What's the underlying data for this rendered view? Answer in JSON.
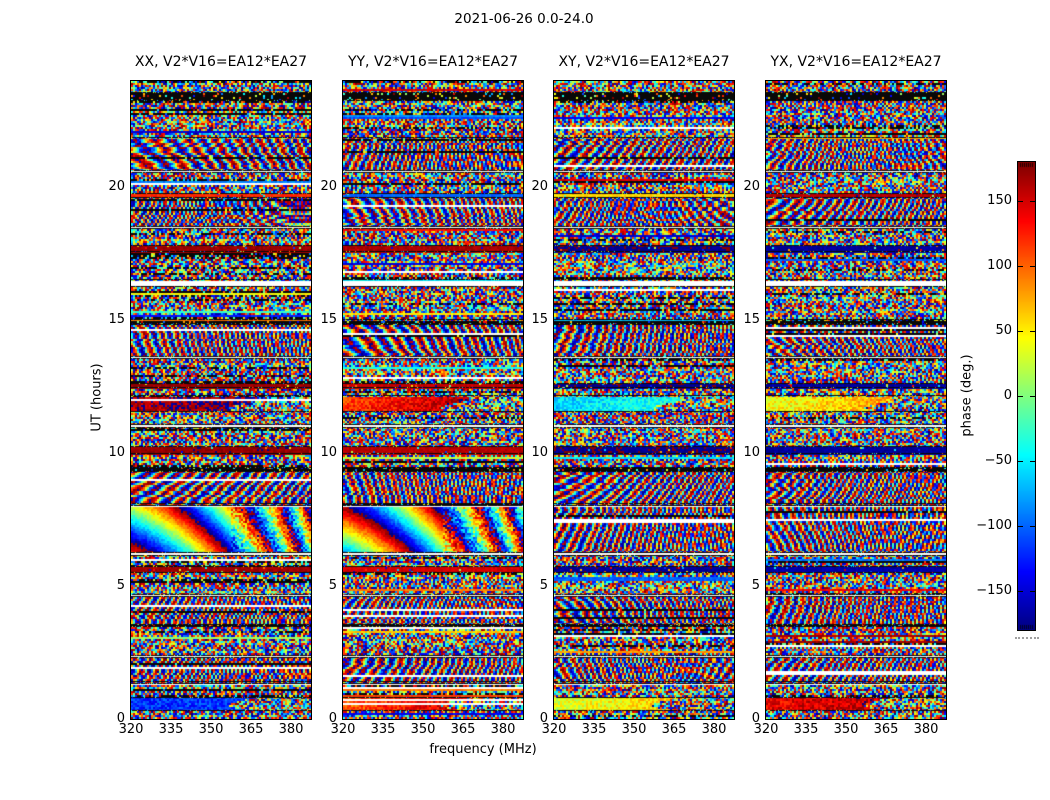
{
  "chart_data": {
    "type": "heatmap",
    "suptitle": "2021-06-26 0.0-24.0",
    "xlabel": "frequency (MHz)",
    "ylabel": "UT (hours)",
    "x_ticks": [
      320,
      335,
      350,
      365,
      380
    ],
    "x_tick_labels": [
      "320",
      "335",
      "350",
      "365",
      "380"
    ],
    "x_range": [
      320,
      387.5
    ],
    "y_ticks": [
      0,
      5,
      10,
      15,
      20
    ],
    "y_tick_labels": [
      "0",
      "5",
      "10",
      "15",
      "20"
    ],
    "y_range": [
      0,
      24
    ],
    "value_name": "phase (deg.)",
    "value_range": [
      -180,
      180
    ],
    "colorbar": {
      "label": "phase (deg.)",
      "ticks": [
        150,
        100,
        50,
        0,
        -50,
        -100,
        -150
      ],
      "tick_labels": [
        "150",
        "100",
        "50",
        "0",
        "−50",
        "−100",
        "−150"
      ],
      "range": [
        -180,
        180
      ],
      "colormap": "jet"
    },
    "colormap_stops": [
      [
        0.0,
        [
          0,
          0,
          127
        ]
      ],
      [
        0.125,
        [
          0,
          0,
          255
        ]
      ],
      [
        0.375,
        [
          0,
          255,
          255
        ]
      ],
      [
        0.625,
        [
          255,
          255,
          0
        ]
      ],
      [
        0.875,
        [
          255,
          0,
          0
        ]
      ],
      [
        1.0,
        [
          127,
          0,
          0
        ]
      ]
    ],
    "panels": [
      {
        "label": "XX, V2*V16=EA12*EA27",
        "pol": "XX",
        "seed": 101
      },
      {
        "label": "YY, V2*V16=EA12*EA27",
        "pol": "YY",
        "seed": 202
      },
      {
        "label": "XY, V2*V16=EA12*EA27",
        "pol": "XY",
        "seed": 303
      },
      {
        "label": "YX, V2*V16=EA12*EA27",
        "pol": "YX",
        "seed": 404
      }
    ],
    "time_segments": [
      {
        "t0": 0.0,
        "t1": 0.3,
        "kind": "noise"
      },
      {
        "t0": 0.3,
        "t1": 0.8,
        "kind": "band",
        "base": [
          -120,
          100,
          30,
          140
        ],
        "grad": [
          10,
          80,
          50,
          30
        ]
      },
      {
        "t0": 0.8,
        "t1": 1.3,
        "kind": "noise"
      },
      {
        "t0": 1.3,
        "t1": 1.38,
        "kind": "white"
      },
      {
        "t0": 1.38,
        "t1": 2.3,
        "kind": "wave"
      },
      {
        "t0": 2.3,
        "t1": 2.38,
        "kind": "white"
      },
      {
        "t0": 2.38,
        "t1": 3.45,
        "kind": "noise"
      },
      {
        "t0": 3.45,
        "t1": 3.55,
        "kind": "black"
      },
      {
        "t0": 3.55,
        "t1": 4.6,
        "kind": "wave"
      },
      {
        "t0": 4.6,
        "t1": 4.68,
        "kind": "white"
      },
      {
        "t0": 4.68,
        "t1": 5.5,
        "kind": "noise"
      },
      {
        "t0": 5.5,
        "t1": 5.72,
        "kind": "solid",
        "base": [
          168,
          150,
          -172,
          -166
        ]
      },
      {
        "t0": 5.72,
        "t1": 6.15,
        "kind": "noise"
      },
      {
        "t0": 6.15,
        "t1": 6.25,
        "kind": "white"
      },
      {
        "t0": 6.25,
        "t1": 8.0,
        "kind": "ramp",
        "base": [
          -90,
          60,
          0,
          120
        ]
      },
      {
        "t0": 8.0,
        "t1": 8.08,
        "kind": "white"
      },
      {
        "t0": 8.08,
        "t1": 9.3,
        "kind": "wave"
      },
      {
        "t0": 9.3,
        "t1": 9.45,
        "kind": "black"
      },
      {
        "t0": 9.45,
        "t1": 9.95,
        "kind": "noise"
      },
      {
        "t0": 9.95,
        "t1": 10.25,
        "kind": "solid",
        "base": [
          172,
          160,
          -175,
          -170
        ]
      },
      {
        "t0": 10.25,
        "t1": 10.95,
        "kind": "noise"
      },
      {
        "t0": 10.95,
        "t1": 11.05,
        "kind": "white"
      },
      {
        "t0": 11.05,
        "t1": 11.55,
        "kind": "noise"
      },
      {
        "t0": 11.55,
        "t1": 12.15,
        "kind": "band",
        "base": [
          165,
          115,
          -60,
          40
        ],
        "grad": [
          20,
          70,
          40,
          50
        ]
      },
      {
        "t0": 12.15,
        "t1": 12.45,
        "kind": "noise"
      },
      {
        "t0": 12.45,
        "t1": 12.62,
        "kind": "solid",
        "base": [
          170,
          155,
          -173,
          -168
        ]
      },
      {
        "t0": 12.62,
        "t1": 13.55,
        "kind": "noise"
      },
      {
        "t0": 13.55,
        "t1": 13.63,
        "kind": "white"
      },
      {
        "t0": 13.63,
        "t1": 14.85,
        "kind": "wave"
      },
      {
        "t0": 14.85,
        "t1": 15.0,
        "kind": "black"
      },
      {
        "t0": 15.0,
        "t1": 16.25,
        "kind": "noise"
      },
      {
        "t0": 16.25,
        "t1": 16.5,
        "kind": "white"
      },
      {
        "t0": 16.5,
        "t1": 17.55,
        "kind": "noise"
      },
      {
        "t0": 17.55,
        "t1": 17.8,
        "kind": "solid",
        "base": [
          170,
          165,
          -174,
          -170
        ]
      },
      {
        "t0": 17.8,
        "t1": 18.45,
        "kind": "noise"
      },
      {
        "t0": 18.45,
        "t1": 18.52,
        "kind": "white"
      },
      {
        "t0": 18.52,
        "t1": 19.6,
        "kind": "wave"
      },
      {
        "t0": 19.6,
        "t1": 19.75,
        "kind": "solid",
        "base": [
          120,
          -100,
          60,
          160
        ]
      },
      {
        "t0": 19.75,
        "t1": 20.55,
        "kind": "noise"
      },
      {
        "t0": 20.55,
        "t1": 20.62,
        "kind": "white"
      },
      {
        "t0": 20.62,
        "t1": 21.85,
        "kind": "wave"
      },
      {
        "t0": 21.85,
        "t1": 23.25,
        "kind": "noise"
      },
      {
        "t0": 23.25,
        "t1": 23.55,
        "kind": "black"
      },
      {
        "t0": 23.55,
        "t1": 24.0,
        "kind": "noise"
      }
    ]
  }
}
